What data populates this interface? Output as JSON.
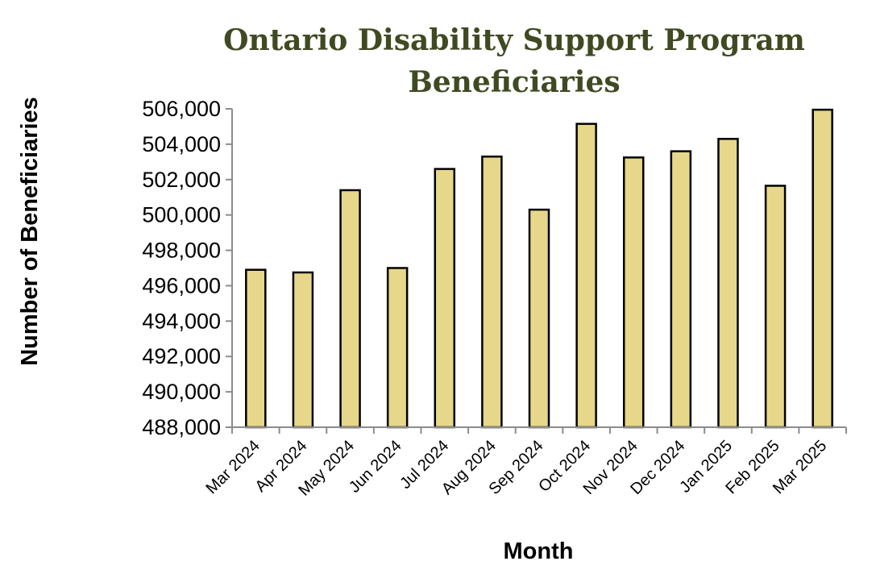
{
  "chart_data": {
    "type": "bar",
    "title_lines": [
      "Ontario Disability Support Program",
      "Beneficiaries"
    ],
    "xlabel": "Month",
    "ylabel": "Number of Beneficiaries",
    "categories": [
      "Mar 2024",
      "Apr 2024",
      "May 2024",
      "Jun 2024",
      "Jul 2024",
      "Aug 2024",
      "Sep 2024",
      "Oct 2024",
      "Nov 2024",
      "Dec 2024",
      "Jan 2025",
      "Feb 2025",
      "Mar 2025"
    ],
    "values": [
      496900,
      496750,
      501400,
      497000,
      502600,
      503300,
      500300,
      505150,
      503250,
      503600,
      504300,
      501650,
      505950
    ],
    "ylim": [
      488000,
      506000
    ],
    "yticks": [
      "506,000",
      "504,000",
      "502,000",
      "500,000",
      "498,000",
      "496,000",
      "494,000",
      "492,000",
      "490,000",
      "488,000"
    ],
    "grid": false,
    "legend": "none",
    "colors": {
      "bar_fill": "#e6d78b",
      "bar_stroke": "#000000",
      "title": "#3f4a22"
    }
  }
}
